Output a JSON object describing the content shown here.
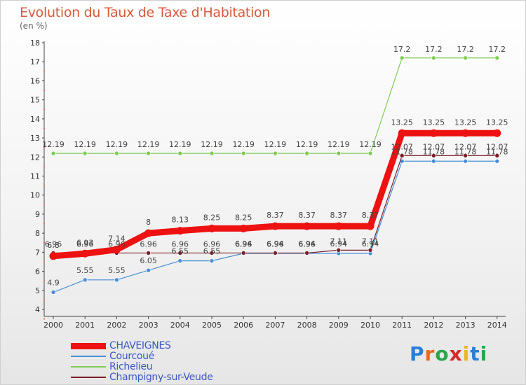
{
  "chart_data": {
    "type": "line",
    "title": "Evolution du Taux de Taxe d'Habitation",
    "subtitle": "(en %)",
    "x": [
      "2000",
      "2001",
      "2002",
      "2003",
      "2004",
      "2005",
      "2006",
      "2007",
      "2008",
      "2009",
      "2010",
      "2011",
      "2012",
      "2013",
      "2014"
    ],
    "ylim": [
      4,
      18
    ],
    "yticks": [
      4,
      5,
      6,
      7,
      8,
      9,
      10,
      11,
      12,
      13,
      14,
      15,
      16,
      17,
      18
    ],
    "grid": false,
    "legend_position": "bottom-left",
    "series": [
      {
        "name": "CHAVEIGNES",
        "color": "#ee1111",
        "width": 9,
        "values": [
          6.8,
          6.93,
          7.14,
          8,
          8.13,
          8.25,
          8.25,
          8.37,
          8.37,
          8.37,
          8.37,
          13.25,
          13.25,
          13.25,
          13.25
        ]
      },
      {
        "name": "Courcoué",
        "color": "#4a8fd6",
        "width": 1.2,
        "values": [
          4.9,
          5.55,
          5.55,
          6.05,
          6.55,
          6.55,
          6.94,
          6.94,
          6.94,
          6.94,
          6.94,
          11.78,
          11.78,
          11.78,
          11.78
        ]
      },
      {
        "name": "Richelieu",
        "color": "#7fcc55",
        "width": 1.2,
        "values": [
          12.19,
          12.19,
          12.19,
          12.19,
          12.19,
          12.19,
          12.19,
          12.19,
          12.19,
          12.19,
          12.19,
          17.2,
          17.2,
          17.2,
          17.2
        ]
      },
      {
        "name": "Champigny-sur-Veude",
        "color": "#7a1f2a",
        "width": 1.2,
        "values": [
          6.96,
          6.96,
          6.96,
          6.96,
          6.96,
          6.96,
          6.96,
          6.96,
          6.96,
          7.11,
          7.11,
          12.07,
          12.07,
          12.07,
          12.07
        ]
      }
    ],
    "labels": [
      {
        "series": 0,
        "text": [
          "6.8",
          "6.93",
          "7.14",
          "8",
          "8.13",
          "8.25",
          "8.25",
          "8.37",
          "8.37",
          "8.37",
          "8.37",
          "13.25",
          "13.25",
          "13.25",
          "13.25"
        ]
      },
      {
        "series": 1,
        "text": [
          "4.9",
          "5.55",
          "5.55",
          "6.05",
          "6.55",
          "6.55",
          "6.94",
          "6.94",
          "6.94",
          "6.94",
          "6.94",
          "11.78",
          "11.78",
          "11.78",
          "11.78"
        ]
      },
      {
        "series": 2,
        "text": [
          "12.19",
          "12.19",
          "12.19",
          "12.19",
          "12.19",
          "12.19",
          "12.19",
          "12.19",
          "12.19",
          "12.19",
          "12.19",
          "17.2",
          "17.2",
          "17.2",
          "17.2"
        ]
      },
      {
        "series": 3,
        "text": [
          "6.96",
          "6.96",
          "6.96",
          "6.96",
          "6.96",
          "6.96",
          "6.96",
          "6.96",
          "6.96",
          "7.11",
          "7.11",
          "12.07",
          "12.07",
          "12.07",
          "12.07"
        ]
      }
    ]
  },
  "logo": {
    "letters": [
      "P",
      "r",
      "o",
      "x",
      "i",
      "t",
      "i"
    ],
    "colors": [
      "#2a7fd4",
      "#e86a1e",
      "#2aa64a",
      "#d42a2a",
      "#e8b81e",
      "#2a7fd4",
      "#2aa64a"
    ]
  }
}
